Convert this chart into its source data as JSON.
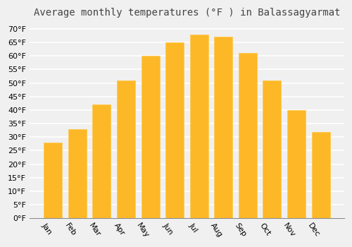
{
  "months": [
    "Jan",
    "Feb",
    "Mar",
    "Apr",
    "May",
    "Jun",
    "Jul",
    "Aug",
    "Sep",
    "Oct",
    "Nov",
    "Dec"
  ],
  "values": [
    28,
    33,
    42,
    51,
    60,
    65,
    68,
    67,
    61,
    51,
    40,
    32
  ],
  "bar_color_main": "#FDB827",
  "bar_color_edge": "#FFC84A",
  "title": "Average monthly temperatures (°F ) in Balassagyarmat",
  "ylim": [
    0,
    72
  ],
  "yticks": [
    0,
    5,
    10,
    15,
    20,
    25,
    30,
    35,
    40,
    45,
    50,
    55,
    60,
    65,
    70
  ],
  "ylabel_suffix": "°F",
  "background_color": "#f0f0f0",
  "plot_bg_color": "#f0f0f0",
  "grid_color": "#ffffff",
  "title_fontsize": 10,
  "tick_fontsize": 8,
  "label_rotation": -55
}
